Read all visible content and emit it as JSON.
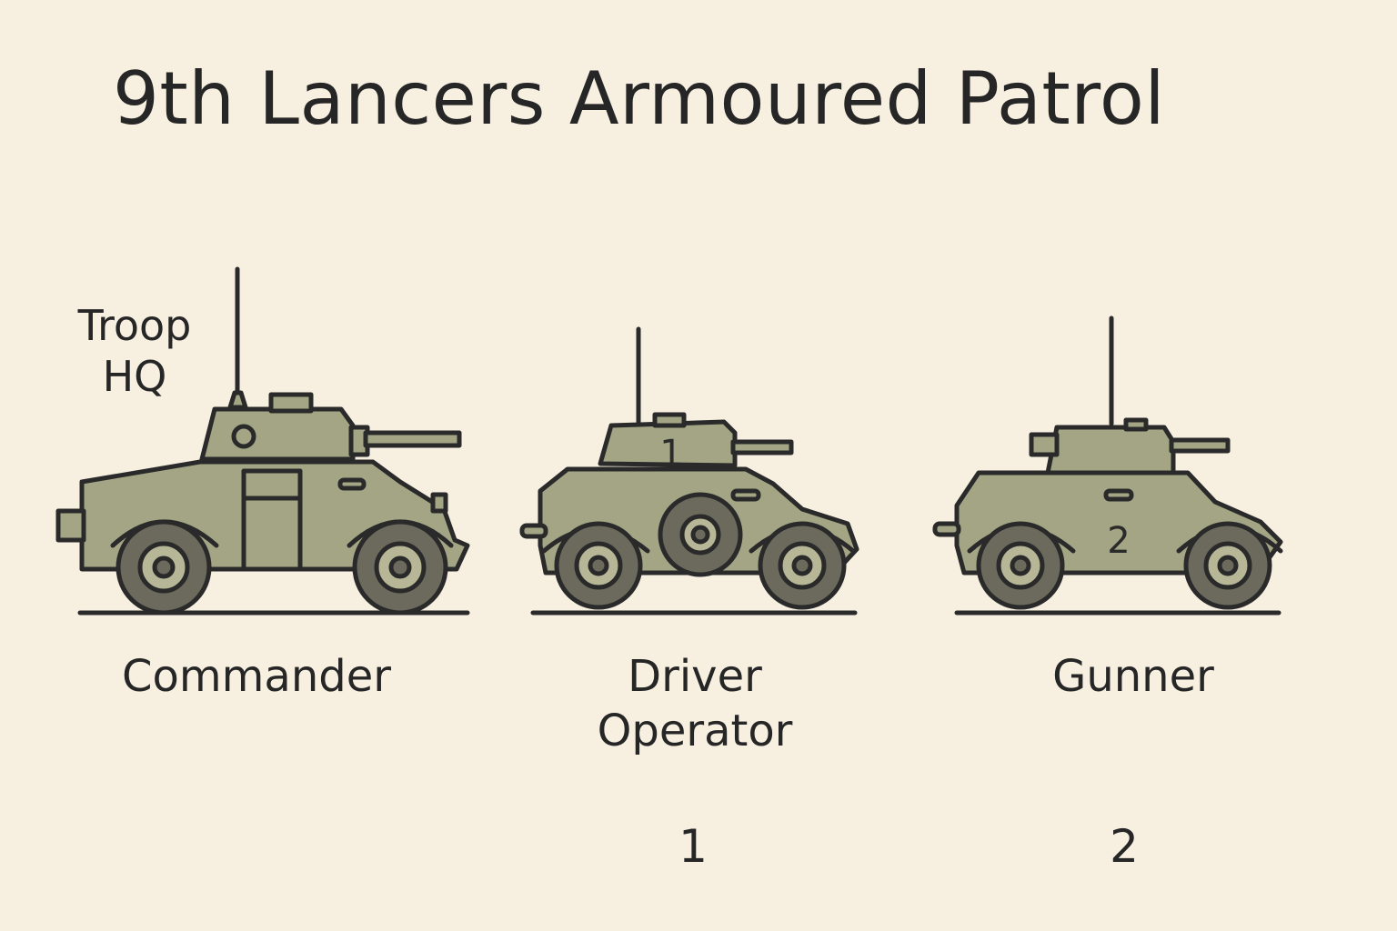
{
  "title": "9th Lancers Armoured Patrol",
  "troop_hq_label": {
    "line1": "Troop",
    "line2": "HQ"
  },
  "vehicles": [
    {
      "role_lines": [
        "Commander"
      ],
      "number": ""
    },
    {
      "role_lines": [
        "Driver",
        "Operator"
      ],
      "number": "1",
      "hull_marking": "1"
    },
    {
      "role_lines": [
        "Gunner"
      ],
      "number": "2",
      "hull_marking": "2"
    }
  ],
  "colors": {
    "background": "#f7f0e1",
    "hull": "#a3a585",
    "wheel": "#6b6a5c",
    "hub": "#b7b797",
    "outline": "#2a2a2a"
  }
}
